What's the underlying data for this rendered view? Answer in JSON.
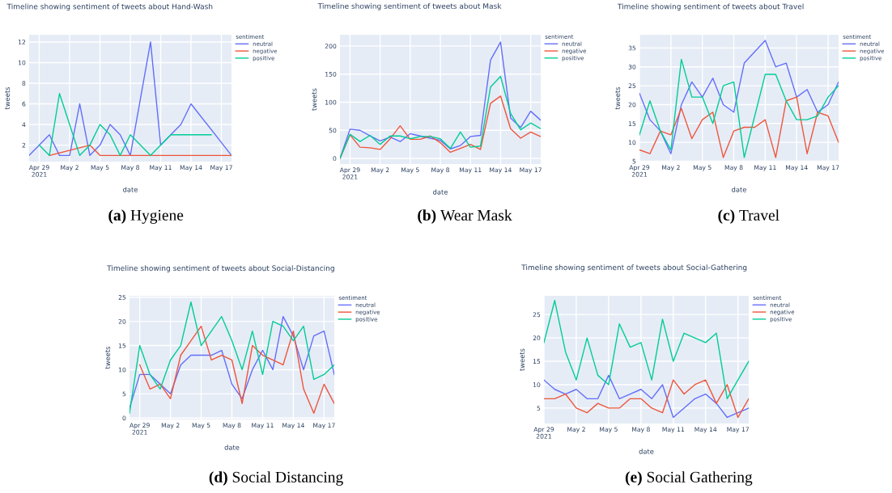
{
  "chart_data": [
    {
      "type": "line",
      "title": "Timeline showing sentiment of tweets about Hand-Wash",
      "xlabel": "date",
      "ylabel": "tweets",
      "legend_title": "sentiment",
      "legend": "right",
      "grid": true,
      "marker": "none",
      "line_style": "solid",
      "xlim": [
        "2021-04-28",
        "2021-05-18"
      ],
      "ylim": [
        0.4,
        12.7
      ],
      "yticks": [
        2,
        4,
        6,
        8,
        10,
        12
      ],
      "xticks": [
        {
          "value": "2021-04-29",
          "label": "Apr 29\n2021"
        },
        {
          "value": "2021-05-02",
          "label": "May 2"
        },
        {
          "value": "2021-05-05",
          "label": "May 5"
        },
        {
          "value": "2021-05-08",
          "label": "May 8"
        },
        {
          "value": "2021-05-11",
          "label": "May 11"
        },
        {
          "value": "2021-05-14",
          "label": "May 14"
        },
        {
          "value": "2021-05-17",
          "label": "May 17"
        }
      ],
      "series": [
        {
          "name": "neutral",
          "color": "#636efa",
          "x": [
            "2021-04-28",
            "2021-04-29",
            "2021-04-30",
            "2021-05-01",
            "2021-05-02",
            "2021-05-03",
            "2021-05-04",
            "2021-05-05",
            "2021-05-06",
            "2021-05-07",
            "2021-05-08",
            "2021-05-10",
            "2021-05-11",
            "2021-05-12",
            "2021-05-13",
            "2021-05-14",
            "2021-05-18"
          ],
          "values": [
            1,
            2,
            3,
            1,
            1,
            6,
            1,
            2,
            4,
            3,
            1,
            12,
            2,
            3,
            4,
            6,
            1
          ]
        },
        {
          "name": "negative",
          "color": "#ef553b",
          "x": [
            "2021-04-30",
            "2021-05-04",
            "2021-05-05",
            "2021-05-18"
          ],
          "values": [
            1,
            2,
            1,
            1
          ]
        },
        {
          "name": "positive",
          "color": "#00cc96",
          "x": [
            "2021-04-29",
            "2021-04-30",
            "2021-05-01",
            "2021-05-02",
            "2021-05-03",
            "2021-05-04",
            "2021-05-05",
            "2021-05-06",
            "2021-05-07",
            "2021-05-08",
            "2021-05-10",
            "2021-05-11",
            "2021-05-12",
            "2021-05-16"
          ],
          "values": [
            2,
            1,
            7,
            4,
            1,
            2,
            4,
            3,
            1,
            3,
            1,
            2,
            3,
            3
          ]
        }
      ],
      "annotations": [
        "(a) Hygiene"
      ]
    },
    {
      "type": "line",
      "title": "Timeline showing sentiment of tweets about Mask",
      "xlabel": "date",
      "ylabel": "tweets",
      "legend_title": "sentiment",
      "legend": "right",
      "grid": true,
      "marker": "none",
      "line_style": "solid",
      "xlim": [
        "2021-04-28",
        "2021-05-18"
      ],
      "ylim": [
        -10,
        220
      ],
      "yticks": [
        0,
        50,
        100,
        150,
        200
      ],
      "xticks": [
        {
          "value": "2021-04-29",
          "label": "Apr 29\n2021"
        },
        {
          "value": "2021-05-02",
          "label": "May 2"
        },
        {
          "value": "2021-05-05",
          "label": "May 5"
        },
        {
          "value": "2021-05-08",
          "label": "May 8"
        },
        {
          "value": "2021-05-11",
          "label": "May 11"
        },
        {
          "value": "2021-05-14",
          "label": "May 14"
        },
        {
          "value": "2021-05-17",
          "label": "May 17"
        }
      ],
      "x": [
        "2021-04-28",
        "2021-04-29",
        "2021-04-30",
        "2021-05-01",
        "2021-05-02",
        "2021-05-03",
        "2021-05-04",
        "2021-05-05",
        "2021-05-06",
        "2021-05-07",
        "2021-05-08",
        "2021-05-09",
        "2021-05-10",
        "2021-05-11",
        "2021-05-12",
        "2021-05-13",
        "2021-05-14",
        "2021-05-15",
        "2021-05-16",
        "2021-05-17",
        "2021-05-18"
      ],
      "series": [
        {
          "name": "neutral",
          "color": "#636efa",
          "values": [
            0,
            52,
            50,
            40,
            31,
            38,
            30,
            44,
            40,
            36,
            32,
            17,
            23,
            39,
            41,
            175,
            207,
            72,
            55,
            84,
            68
          ]
        },
        {
          "name": "negative",
          "color": "#ef553b",
          "values": [
            0,
            42,
            20,
            19,
            16,
            35,
            58,
            34,
            34,
            40,
            28,
            11,
            18,
            25,
            16,
            98,
            111,
            53,
            36,
            47,
            39
          ]
        },
        {
          "name": "positive",
          "color": "#00cc96",
          "values": [
            0,
            43,
            30,
            41,
            25,
            40,
            40,
            35,
            39,
            39,
            35,
            18,
            47,
            20,
            22,
            127,
            146,
            80,
            51,
            63,
            53
          ]
        }
      ],
      "annotations": [
        "(b) Wear Mask"
      ]
    },
    {
      "type": "line",
      "title": "Timeline showing sentiment of tweets about Travel",
      "xlabel": "date",
      "ylabel": "tweets",
      "legend_title": "sentiment",
      "legend": "right",
      "grid": true,
      "marker": "none",
      "line_style": "solid",
      "xlim": [
        "2021-04-29",
        "2021-05-18"
      ],
      "ylim": [
        4.9,
        38.5
      ],
      "yticks": [
        5,
        10,
        15,
        20,
        25,
        30,
        35
      ],
      "xticks": [
        {
          "value": "2021-04-29",
          "label": "Apr 29\n2021"
        },
        {
          "value": "2021-05-02",
          "label": "May 2"
        },
        {
          "value": "2021-05-05",
          "label": "May 5"
        },
        {
          "value": "2021-05-08",
          "label": "May 8"
        },
        {
          "value": "2021-05-11",
          "label": "May 11"
        },
        {
          "value": "2021-05-14",
          "label": "May 14"
        },
        {
          "value": "2021-05-17",
          "label": "May 17"
        }
      ],
      "x": [
        "2021-04-29",
        "2021-04-30",
        "2021-05-01",
        "2021-05-02",
        "2021-05-03",
        "2021-05-04",
        "2021-05-05",
        "2021-05-06",
        "2021-05-07",
        "2021-05-08",
        "2021-05-09",
        "2021-05-10",
        "2021-05-11",
        "2021-05-12",
        "2021-05-13",
        "2021-05-14",
        "2021-05-15",
        "2021-05-16",
        "2021-05-17",
        "2021-05-18"
      ],
      "series": [
        {
          "name": "neutral",
          "color": "#636efa",
          "values": [
            23,
            16,
            13,
            7,
            20,
            26,
            22,
            27,
            20,
            18,
            31,
            34,
            37,
            30,
            31,
            22,
            24,
            18,
            20,
            26
          ]
        },
        {
          "name": "negative",
          "color": "#ef553b",
          "values": [
            8,
            7,
            13,
            12,
            19,
            11,
            16,
            18,
            6,
            13,
            14,
            14,
            16,
            6,
            21,
            22,
            7,
            18,
            17,
            10
          ]
        },
        {
          "name": "positive",
          "color": "#00cc96",
          "values": [
            12,
            21,
            13,
            8,
            32,
            22,
            22,
            15,
            25,
            26,
            6,
            17,
            28,
            28,
            21,
            16,
            16,
            17,
            22,
            25
          ]
        }
      ],
      "annotations": [
        "(c) Travel"
      ]
    },
    {
      "type": "line",
      "title": "Timeline showing sentiment of tweets about Social-Distancing",
      "xlabel": "date",
      "ylabel": "tweets",
      "legend_title": "sentiment",
      "legend": "right",
      "grid": true,
      "marker": "none",
      "line_style": "solid",
      "xlim": [
        "2021-04-28",
        "2021-05-18"
      ],
      "ylim": [
        -0.3,
        25.3
      ],
      "yticks": [
        0,
        5,
        10,
        15,
        20,
        25
      ],
      "xticks": [
        {
          "value": "2021-04-29",
          "label": "Apr 29\n2021"
        },
        {
          "value": "2021-05-02",
          "label": "May 2"
        },
        {
          "value": "2021-05-05",
          "label": "May 5"
        },
        {
          "value": "2021-05-08",
          "label": "May 8"
        },
        {
          "value": "2021-05-11",
          "label": "May 11"
        },
        {
          "value": "2021-05-14",
          "label": "May 14"
        },
        {
          "value": "2021-05-17",
          "label": "May 17"
        }
      ],
      "x": [
        "2021-04-28",
        "2021-04-29",
        "2021-04-30",
        "2021-05-01",
        "2021-05-02",
        "2021-05-03",
        "2021-05-04",
        "2021-05-05",
        "2021-05-06",
        "2021-05-07",
        "2021-05-08",
        "2021-05-09",
        "2021-05-10",
        "2021-05-11",
        "2021-05-12",
        "2021-05-13",
        "2021-05-14",
        "2021-05-15",
        "2021-05-16",
        "2021-05-17",
        "2021-05-18"
      ],
      "series": [
        {
          "name": "neutral",
          "color": "#636efa",
          "values": [
            2,
            9,
            9,
            7,
            5,
            11,
            13,
            13,
            13,
            14,
            7,
            4,
            10,
            14,
            10,
            21,
            17,
            10,
            17,
            18,
            9
          ]
        },
        {
          "name": "negative",
          "color": "#ef553b",
          "values": [
            null,
            11,
            6,
            7,
            4,
            13,
            16,
            19,
            12,
            13,
            12,
            3,
            15,
            13,
            12,
            11,
            18,
            6,
            1,
            7,
            3
          ]
        },
        {
          "name": "positive",
          "color": "#00cc96",
          "values": [
            1,
            15,
            9,
            6,
            12,
            15,
            24,
            15,
            18,
            21,
            16,
            10,
            18,
            9,
            20,
            19,
            16,
            19,
            8,
            9,
            11
          ]
        }
      ],
      "annotations": [
        "(d) Social Distancing"
      ]
    },
    {
      "type": "line",
      "title": "Timeline showing sentiment of tweets about Social-Gathering",
      "xlabel": "date",
      "ylabel": "tweets",
      "legend_title": "sentiment",
      "legend": "right",
      "grid": true,
      "marker": "none",
      "line_style": "solid",
      "xlim": [
        "2021-04-29",
        "2021-05-18"
      ],
      "ylim": [
        1.7,
        29
      ],
      "yticks": [
        5,
        10,
        15,
        20,
        25
      ],
      "xticks": [
        {
          "value": "2021-04-29",
          "label": "Apr 29\n2021"
        },
        {
          "value": "2021-05-02",
          "label": "May 2"
        },
        {
          "value": "2021-05-05",
          "label": "May 5"
        },
        {
          "value": "2021-05-08",
          "label": "May 8"
        },
        {
          "value": "2021-05-11",
          "label": "May 11"
        },
        {
          "value": "2021-05-14",
          "label": "May 14"
        },
        {
          "value": "2021-05-17",
          "label": "May 17"
        }
      ],
      "x": [
        "2021-04-29",
        "2021-04-30",
        "2021-05-01",
        "2021-05-02",
        "2021-05-03",
        "2021-05-04",
        "2021-05-05",
        "2021-05-06",
        "2021-05-07",
        "2021-05-08",
        "2021-05-09",
        "2021-05-10",
        "2021-05-11",
        "2021-05-12",
        "2021-05-13",
        "2021-05-14",
        "2021-05-15",
        "2021-05-16",
        "2021-05-17",
        "2021-05-18"
      ],
      "series": [
        {
          "name": "neutral",
          "color": "#636efa",
          "values": [
            11,
            9,
            8,
            9,
            7,
            7,
            12,
            7,
            8,
            9,
            7,
            10,
            3,
            5,
            7,
            8,
            6,
            3,
            4,
            5
          ]
        },
        {
          "name": "negative",
          "color": "#ef553b",
          "values": [
            7,
            7,
            8,
            5,
            4,
            6,
            5,
            5,
            7,
            7,
            5,
            4,
            11,
            8,
            10,
            11,
            6,
            10,
            3,
            7
          ]
        },
        {
          "name": "positive",
          "color": "#00cc96",
          "values": [
            19,
            28,
            17,
            11,
            20,
            12,
            10,
            23,
            18,
            19,
            11,
            24,
            15,
            21,
            20,
            19,
            21,
            7,
            11,
            15
          ]
        }
      ],
      "annotations": [
        "(e) Social Gathering"
      ]
    }
  ]
}
